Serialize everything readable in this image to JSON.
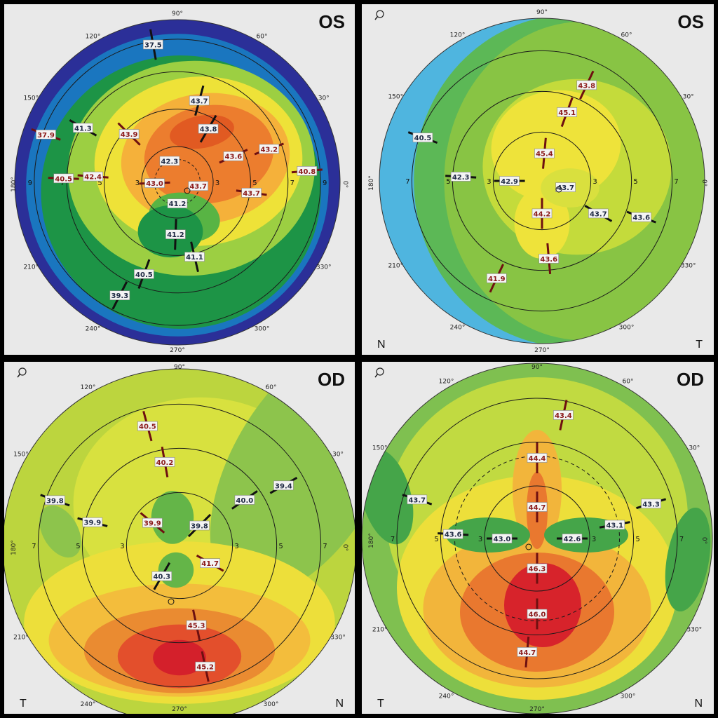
{
  "panels": [
    {
      "id": "top-left",
      "eye_label": "OS",
      "corner_left": "",
      "corner_right": "",
      "show_zoom": false,
      "palette": "steep",
      "deg_labels": [
        "90°",
        "60°",
        "30°",
        "0°",
        "330°",
        "300°",
        "270°",
        "240°",
        "210°",
        "180°",
        "150°",
        "120°"
      ],
      "ring_labels": [
        "3",
        "5",
        "7",
        "9"
      ],
      "values": [
        {
          "text": "37.5",
          "ang": 100,
          "rad": 0.86,
          "color": "navy",
          "mer": true
        },
        {
          "text": "43.7",
          "ang": 75,
          "rad": 0.52,
          "color": "navy",
          "mer": true
        },
        {
          "text": "43.8",
          "ang": 60,
          "rad": 0.38,
          "color": "navy",
          "mer": true
        },
        {
          "text": "42.3",
          "ang": 110,
          "rad": 0.14,
          "color": "navy",
          "mer": false
        },
        {
          "text": "37.9",
          "ang": 160,
          "rad": 0.86,
          "color": "red",
          "mer": true
        },
        {
          "text": "41.3",
          "ang": 150,
          "rad": 0.67,
          "color": "navy",
          "mer": true
        },
        {
          "text": "43.9",
          "ang": 135,
          "rad": 0.42,
          "color": "red",
          "mer": true
        },
        {
          "text": "43.6",
          "ang": 25,
          "rad": 0.38,
          "color": "red",
          "mer": true
        },
        {
          "text": "43.2",
          "ang": 20,
          "rad": 0.6,
          "color": "red",
          "mer": true
        },
        {
          "text": "40.8",
          "ang": 5,
          "rad": 0.8,
          "color": "red",
          "mer": true
        },
        {
          "text": "40.5",
          "ang": 178,
          "rad": 0.7,
          "color": "red",
          "mer": true
        },
        {
          "text": "42.4",
          "ang": 176,
          "rad": 0.52,
          "color": "red",
          "mer": true
        },
        {
          "text": "43.0",
          "ang": 182,
          "rad": 0.14,
          "color": "red",
          "mer": true
        },
        {
          "text": "43.7",
          "ang": 350,
          "rad": 0.13,
          "color": "red",
          "mer": false
        },
        {
          "text": "43.7",
          "ang": 352,
          "rad": 0.46,
          "color": "red",
          "mer": true
        },
        {
          "text": "41.2",
          "ang": 270,
          "rad": 0.13,
          "color": "navy",
          "mer": false
        },
        {
          "text": "41.2",
          "ang": 268,
          "rad": 0.32,
          "color": "navy",
          "mer": true
        },
        {
          "text": "41.1",
          "ang": 283,
          "rad": 0.47,
          "color": "navy",
          "mer": true
        },
        {
          "text": "40.5",
          "ang": 250,
          "rad": 0.6,
          "color": "navy",
          "mer": true
        },
        {
          "text": "39.3",
          "ang": 243,
          "rad": 0.78,
          "color": "navy",
          "mer": true
        }
      ]
    },
    {
      "id": "top-right",
      "eye_label": "OS",
      "corner_left": "N",
      "corner_right": "T",
      "show_zoom": true,
      "palette": "flatOS",
      "deg_labels": [
        "90°",
        "60°",
        "30°",
        "0°",
        "330°",
        "300°",
        "270°",
        "240°",
        "210°",
        "180°",
        "150°",
        "120°"
      ],
      "ring_labels": [
        "3",
        "5",
        "7"
      ],
      "values": [
        {
          "text": "43.8",
          "ang": 65,
          "rad": 0.65,
          "color": "red",
          "mer": true
        },
        {
          "text": "45.1",
          "ang": 70,
          "rad": 0.45,
          "color": "red",
          "mer": true
        },
        {
          "text": "45.4",
          "ang": 85,
          "rad": 0.17,
          "color": "red",
          "mer": true
        },
        {
          "text": "40.5",
          "ang": 160,
          "rad": 0.78,
          "color": "navy",
          "mer": true
        },
        {
          "text": "42.3",
          "ang": 177,
          "rad": 0.5,
          "color": "navy",
          "mer": true
        },
        {
          "text": "42.9",
          "ang": 180,
          "rad": 0.2,
          "color": "navy",
          "mer": true
        },
        {
          "text": "43.7",
          "ang": 345,
          "rad": 0.15,
          "color": "navy",
          "mer": false
        },
        {
          "text": "43.7",
          "ang": 330,
          "rad": 0.4,
          "color": "navy",
          "mer": true
        },
        {
          "text": "43.6",
          "ang": 340,
          "rad": 0.65,
          "color": "navy",
          "mer": true
        },
        {
          "text": "44.2",
          "ang": 270,
          "rad": 0.2,
          "color": "red",
          "mer": true
        },
        {
          "text": "43.6",
          "ang": 275,
          "rad": 0.48,
          "color": "red",
          "mer": true
        },
        {
          "text": "41.9",
          "ang": 245,
          "rad": 0.66,
          "color": "red",
          "mer": true
        }
      ]
    },
    {
      "id": "bottom-left",
      "eye_label": "OD",
      "corner_left": "T",
      "corner_right": "N",
      "show_zoom": true,
      "palette": "flatOD",
      "deg_labels": [
        "90°",
        "60°",
        "30°",
        "0°",
        "330°",
        "300°",
        "270°",
        "240°",
        "210°",
        "180°",
        "150°",
        "120°"
      ],
      "ring_labels": [
        "3",
        "5",
        "7"
      ],
      "values": [
        {
          "text": "40.5",
          "ang": 105,
          "rad": 0.7,
          "color": "red",
          "mer": true
        },
        {
          "text": "40.2",
          "ang": 100,
          "rad": 0.48,
          "color": "red",
          "mer": true
        },
        {
          "text": "40.0",
          "ang": 35,
          "rad": 0.45,
          "color": "navy",
          "mer": true
        },
        {
          "text": "39.4",
          "ang": 30,
          "rad": 0.68,
          "color": "navy",
          "mer": true
        },
        {
          "text": "39.8",
          "ang": 160,
          "rad": 0.75,
          "color": "navy",
          "mer": true
        },
        {
          "text": "39.9",
          "ang": 165,
          "rad": 0.51,
          "color": "navy",
          "mer": true
        },
        {
          "text": "39.9",
          "ang": 140,
          "rad": 0.2,
          "color": "red",
          "mer": true
        },
        {
          "text": "39.8",
          "ang": 45,
          "rad": 0.16,
          "color": "navy",
          "mer": true
        },
        {
          "text": "40.3",
          "ang": 240,
          "rad": 0.2,
          "color": "navy",
          "mer": true
        },
        {
          "text": "41.7",
          "ang": 330,
          "rad": 0.2,
          "color": "red",
          "mer": true
        },
        {
          "text": "45.3",
          "ang": 282,
          "rad": 0.46,
          "color": "red",
          "mer": true
        },
        {
          "text": "45.2",
          "ang": 282,
          "rad": 0.7,
          "color": "red",
          "mer": true
        }
      ]
    },
    {
      "id": "bottom-right",
      "eye_label": "OD",
      "corner_left": "T",
      "corner_right": "N",
      "show_zoom": true,
      "palette": "bowtie",
      "deg_labels": [
        "90°",
        "60°",
        "30°",
        "0°",
        "330°",
        "300°",
        "270°",
        "240°",
        "210°",
        "180°",
        "150°",
        "120°"
      ],
      "ring_labels": [
        "3",
        "5",
        "7"
      ],
      "values": [
        {
          "text": "43.4",
          "ang": 78,
          "rad": 0.72,
          "color": "red",
          "mer": true
        },
        {
          "text": "44.4",
          "ang": 90,
          "rad": 0.46,
          "color": "red",
          "mer": true
        },
        {
          "text": "44.7",
          "ang": 90,
          "rad": 0.18,
          "color": "red",
          "mer": true
        },
        {
          "text": "43.7",
          "ang": 162,
          "rad": 0.72,
          "color": "navy",
          "mer": true
        },
        {
          "text": "43.6",
          "ang": 177,
          "rad": 0.48,
          "color": "navy",
          "mer": true
        },
        {
          "text": "43.0",
          "ang": 180,
          "rad": 0.2,
          "color": "navy",
          "mer": true
        },
        {
          "text": "42.6",
          "ang": 0,
          "rad": 0.2,
          "color": "navy",
          "mer": true
        },
        {
          "text": "43.1",
          "ang": 10,
          "rad": 0.45,
          "color": "navy",
          "mer": true
        },
        {
          "text": "43.3",
          "ang": 17,
          "rad": 0.68,
          "color": "navy",
          "mer": true
        },
        {
          "text": "46.3",
          "ang": 270,
          "rad": 0.17,
          "color": "red",
          "mer": true
        },
        {
          "text": "46.0",
          "ang": 270,
          "rad": 0.43,
          "color": "red",
          "mer": true
        },
        {
          "text": "44.7",
          "ang": 265,
          "rad": 0.65,
          "color": "red",
          "mer": true
        }
      ]
    }
  ],
  "colors": {
    "navy_label": "#1f2a44",
    "red_label": "#8b1a1a",
    "navy_line": "#111111",
    "red_line": "#6e1010"
  }
}
